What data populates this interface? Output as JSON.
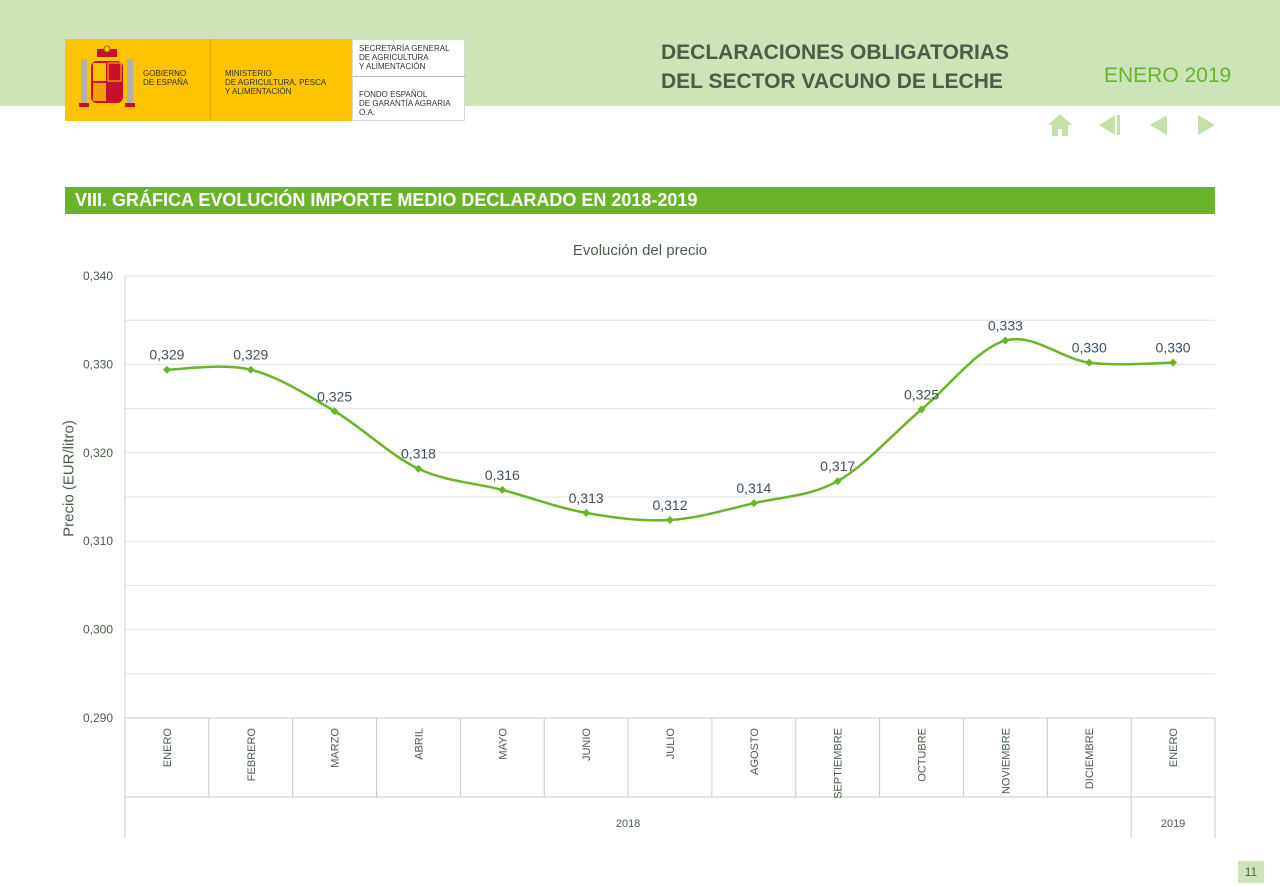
{
  "header": {
    "logo": {
      "gobierno": "GOBIERNO\nDE ESPAÑA",
      "ministerio": "MINISTERIO\nDE AGRICULTURA, PESCA\nY ALIMENTACIÓN",
      "secretaria": "SECRETARÍA GENERAL\nDE AGRICULTURA\nY ALIMENTACIÓN",
      "fondo": "FONDO ESPAÑOL\nDE GARANTÍA AGRARIA O.A."
    },
    "title": "DECLARACIONES OBLIGATORIAS\nDEL SECTOR VACUNO DE LECHE",
    "date": "ENERO 2019"
  },
  "nav": {
    "icons": [
      "home-icon",
      "first-page-icon",
      "previous-icon",
      "next-icon"
    ],
    "color": "#c5e0a8"
  },
  "section": {
    "title": "VIII. GRÁFICA EVOLUCIÓN IMPORTE MEDIO DECLARADO EN 2018-2019"
  },
  "colors": {
    "accent": "#6ab42a",
    "band": "#cde4b9",
    "text": "#4a5d4a"
  },
  "chart_data": {
    "type": "line",
    "title": "Evolución del precio",
    "xlabel": "",
    "ylabel": "Precio (EUR/litro)",
    "ylim": [
      0.29,
      0.34
    ],
    "yticks": [
      "0,290",
      "0,300",
      "0,310",
      "0,320",
      "0,330",
      "0,340"
    ],
    "categories": [
      "ENERO",
      "FEBRERO",
      "MARZO",
      "ABRIL",
      "MAYO",
      "JUNIO",
      "JULIO",
      "AGOSTO",
      "SEPTIEMBRE",
      "OCTUBRE",
      "NOVIEMBRE",
      "DICIEMBRE",
      "ENERO"
    ],
    "groups": [
      {
        "label": "2018",
        "count": 12
      },
      {
        "label": "2019",
        "count": 1
      }
    ],
    "series": [
      {
        "values": [
          0.3294,
          0.3294,
          0.3247,
          0.3182,
          0.3158,
          0.3132,
          0.3124,
          0.3143,
          0.3168,
          0.3249,
          0.3327,
          0.3302,
          0.3302
        ],
        "labels": [
          "0,329",
          "0,329",
          "0,325",
          "0,318",
          "0,316",
          "0,313",
          "0,312",
          "0,314",
          "0,317",
          "0,325",
          "0,333",
          "0,330",
          "0,330"
        ],
        "color": "#6ab42a"
      }
    ],
    "grid": true
  },
  "page_number": "11"
}
